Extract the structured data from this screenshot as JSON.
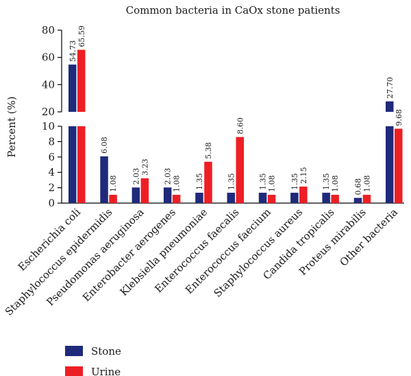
{
  "chart_data": {
    "type": "bar",
    "title": "Common bacteria in CaOx stone patients",
    "xlabel": "",
    "ylabel": "Percent (%)",
    "axis_break": {
      "lower_range": [
        0,
        10
      ],
      "upper_range": [
        20,
        80
      ]
    },
    "lower_ticks": [
      "0",
      "2",
      "4",
      "6",
      "8",
      "10"
    ],
    "upper_ticks": [
      "20",
      "40",
      "60",
      "80"
    ],
    "categories": [
      "Escherichia coli",
      "Staphylococcus epidermidis",
      "Pseudomonas aeruginosa",
      "Enterobacter aerogenes",
      "Klebsiella pneumoniae",
      "Enterococcus faecalis",
      "Enterococcus faecium",
      "Staphylococcus aureus",
      "Candida tropicalis",
      "Proteus mirabilis",
      "Other bacteria"
    ],
    "series": [
      {
        "name": "Stone",
        "color": "#1f2a7a",
        "values": [
          54.73,
          6.08,
          2.03,
          2.03,
          1.35,
          1.35,
          1.35,
          1.35,
          1.35,
          0.68,
          27.7
        ],
        "labels": [
          "54.73",
          "6.08",
          "2.03",
          "2.03",
          "1.35",
          "1.35",
          "1.35",
          "1.35",
          "1.35",
          "0.68",
          "27.70"
        ]
      },
      {
        "name": "Urine",
        "color": "#ee1f24",
        "values": [
          65.59,
          1.08,
          3.23,
          1.08,
          5.38,
          8.6,
          1.08,
          2.15,
          1.08,
          1.08,
          9.68
        ],
        "labels": [
          "65.59",
          "1.08",
          "3.23",
          "1.08",
          "5.38",
          "8.60",
          "1.08",
          "2.15",
          "1.08",
          "1.08",
          "9.68"
        ]
      }
    ],
    "legend_position": "bottom-left",
    "grid": false
  }
}
